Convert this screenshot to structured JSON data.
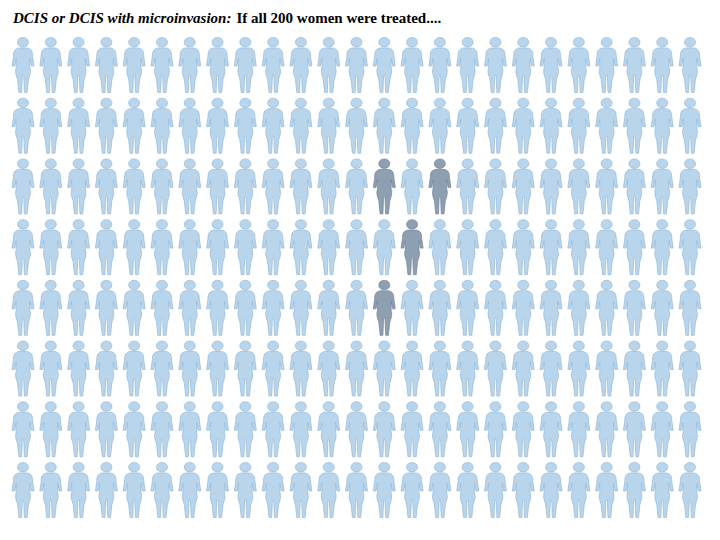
{
  "chart_data": {
    "type": "pictograph",
    "title": "DCIS or DCIS with microinvasion:",
    "subtitle": "If all 200 women were treated....",
    "total": 200,
    "rows": 8,
    "columns": 25,
    "highlighted": [
      63,
      65,
      89,
      113
    ],
    "color": "#b9d5ec",
    "highlight_color": "#8f9fb2",
    "tick_labels": false,
    "grid": false
  }
}
